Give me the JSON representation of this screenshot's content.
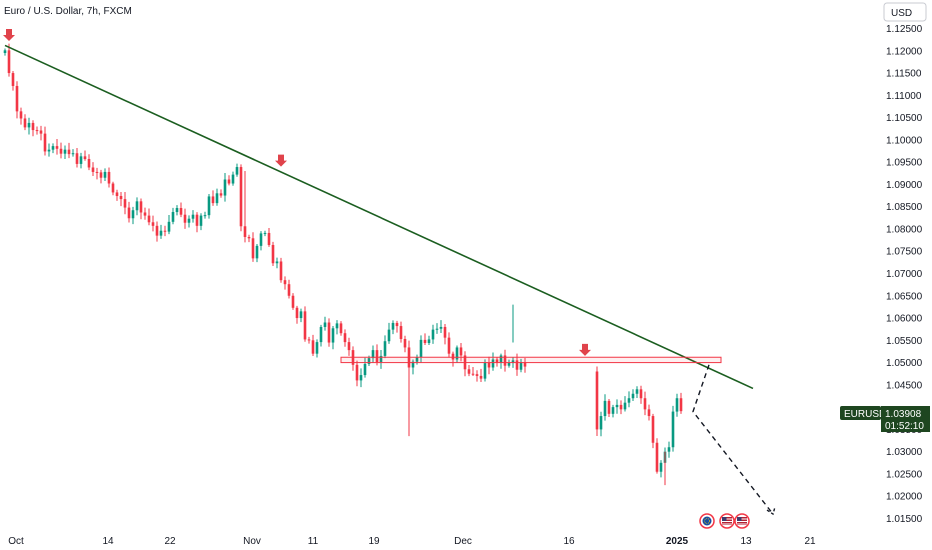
{
  "header": {
    "title": "Euro / U.S. Dollar, 7h, FXCM"
  },
  "currency_button": {
    "label": "USD"
  },
  "symbol_tag": {
    "label": "EURUSD"
  },
  "price_tag": {
    "price": "1.03908",
    "countdown": "01:52:10"
  },
  "colors": {
    "up": "#089981",
    "down": "#f23645",
    "trendline": "#1b5e20",
    "zone": "#f23645",
    "arrow": "#e0434b",
    "price_tag_bg": "#1e4620",
    "axis_text": "#131722"
  },
  "chart_data": {
    "type": "candlestick",
    "title": "Euro / U.S. Dollar, 7h, FXCM",
    "ylim": [
      1.0135,
      1.1285
    ],
    "y_ticks": [
      "1.12500",
      "1.12000",
      "1.11500",
      "1.11000",
      "1.10500",
      "1.10000",
      "1.09500",
      "1.09000",
      "1.08500",
      "1.08000",
      "1.07500",
      "1.07000",
      "1.06500",
      "1.06000",
      "1.05500",
      "1.05000",
      "1.04500",
      "1.03500",
      "1.03000",
      "1.02500",
      "1.02000",
      "1.01500"
    ],
    "x_ticks": [
      {
        "label": "Oct",
        "strong": false
      },
      {
        "label": "14",
        "strong": false
      },
      {
        "label": "22",
        "strong": false
      },
      {
        "label": "Nov",
        "strong": false
      },
      {
        "label": "11",
        "strong": false
      },
      {
        "label": "19",
        "strong": false
      },
      {
        "label": "Dec",
        "strong": false
      },
      {
        "label": "16",
        "strong": false
      },
      {
        "label": "2025",
        "strong": true
      },
      {
        "label": "13",
        "strong": false
      },
      {
        "label": "21",
        "strong": false
      }
    ],
    "bar_count": 131,
    "future_bar_count": 17,
    "closes": [
      1.1201,
      1.115,
      1.1121,
      1.1064,
      1.1048,
      1.1028,
      1.1038,
      1.1022,
      1.1021,
      1.1014,
      1.0974,
      1.0978,
      1.0986,
      1.098,
      1.0969,
      1.0978,
      1.0968,
      1.097,
      1.0946,
      1.0963,
      1.0957,
      1.0938,
      1.0928,
      1.0927,
      1.0915,
      1.0928,
      1.0902,
      1.0882,
      1.0874,
      1.0867,
      1.0848,
      1.0824,
      1.0842,
      1.0862,
      1.0837,
      1.083,
      1.0815,
      1.0807,
      1.0785,
      1.0796,
      1.0794,
      1.0816,
      1.0838,
      1.0847,
      1.0832,
      1.0814,
      1.0823,
      1.0832,
      1.0807,
      1.083,
      1.0831,
      1.0873,
      1.0858,
      1.088,
      1.0875,
      1.0911,
      1.0902,
      1.0922,
      1.0939,
      1.0806,
      1.0782,
      1.0779,
      1.0734,
      1.0762,
      1.079,
      1.0791,
      1.0764,
      1.0723,
      1.0727,
      1.0685,
      1.0676,
      1.065,
      1.0623,
      1.06,
      1.0615,
      1.0552,
      1.055,
      1.052,
      1.0546,
      1.058,
      1.059,
      1.0545,
      1.0577,
      1.0588,
      1.0566,
      1.0546,
      1.0528,
      1.0495,
      1.046,
      1.0472,
      1.0497,
      1.051,
      1.0528,
      1.0501,
      1.0515,
      1.0548,
      1.0574,
      1.0589,
      1.0582,
      1.0553,
      1.0534,
      1.0489,
      1.0502,
      1.0512,
      1.0551,
      1.0544,
      1.0552,
      1.0574,
      1.0576,
      1.058,
      1.0556,
      1.052,
      1.0507,
      1.0534,
      1.0516,
      1.0485,
      1.0475,
      1.0474,
      1.047,
      1.0464,
      1.05,
      1.0489,
      1.0507,
      1.05,
      1.0516,
      1.0493,
      1.0499,
      1.0505,
      1.0484,
      1.0501,
      1.0491
    ],
    "last_segment_closes": [
      1.035,
      1.038,
      1.0414,
      1.0385,
      1.04,
      1.0405,
      1.0395,
      1.041,
      1.042,
      1.043,
      1.044,
      1.042,
      1.0395,
      1.038,
      1.032,
      1.0255,
      1.0275,
      1.03,
      1.031,
      1.039,
      1.042,
      1.0391
    ],
    "annotations": {
      "trendline": {
        "start": {
          "bar": 0,
          "price": 1.1212
        },
        "end": {
          "bar": 187,
          "price": 1.0442
        }
      },
      "zone": {
        "from_bar": 84,
        "to_bar": 179,
        "top": 1.0512,
        "bottom": 1.05
      },
      "arrows": [
        {
          "bar": 1,
          "price": 1.1222
        },
        {
          "bar": 69,
          "price": 1.094
        },
        {
          "bar": 145,
          "price": 1.0515
        }
      ],
      "projection": [
        {
          "bar": 176,
          "price": 1.0495
        },
        {
          "bar": 172,
          "price": 1.039
        },
        {
          "bar": 192,
          "price": 1.016
        }
      ]
    }
  }
}
